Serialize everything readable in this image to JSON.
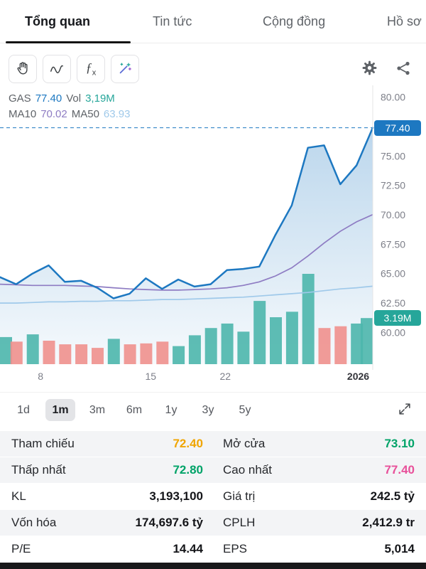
{
  "tabs": {
    "items": [
      {
        "label": "Tổng quan"
      },
      {
        "label": "Tin tức"
      },
      {
        "label": "Cộng đồng"
      },
      {
        "label": "Hồ sơ"
      }
    ],
    "active": "Tổng quan"
  },
  "toolbar": {
    "icons": [
      "pan-hand",
      "indicator-curve",
      "function-fx",
      "magic-wand"
    ],
    "right_icons": [
      "settings-gear",
      "share"
    ]
  },
  "legend": {
    "symbol": "GAS",
    "price": "77.40",
    "vol_label": "Vol",
    "vol_value": "3,19M",
    "ma10_label": "MA10",
    "ma10_value": "70.02",
    "ma50_label": "MA50",
    "ma50_value": "63.93"
  },
  "badges": {
    "price": "77.40",
    "volume": "3.19M"
  },
  "chart_data": {
    "type": "line",
    "symbol": "GAS",
    "timeframe": "1m",
    "ylim": [
      59.0,
      81.0
    ],
    "current_price": 77.4,
    "current_volume_label": "3.19M",
    "price": [
      64.7,
      64.1,
      65.0,
      65.7,
      64.3,
      64.4,
      63.8,
      62.9,
      63.3,
      64.6,
      63.7,
      64.5,
      63.9,
      64.1,
      65.3,
      65.4,
      65.6,
      68.3,
      70.8,
      75.7,
      75.9,
      72.6,
      74.2,
      77.4
    ],
    "ma10": [
      64.1,
      64.05,
      64.0,
      64.0,
      64.0,
      63.95,
      63.9,
      63.8,
      63.7,
      63.65,
      63.6,
      63.6,
      63.65,
      63.7,
      63.8,
      64.0,
      64.3,
      64.8,
      65.5,
      66.5,
      67.6,
      68.6,
      69.4,
      70.02
    ],
    "ma50": [
      62.5,
      62.5,
      62.55,
      62.6,
      62.6,
      62.65,
      62.65,
      62.7,
      62.7,
      62.75,
      62.8,
      62.8,
      62.85,
      62.9,
      62.95,
      63.0,
      63.1,
      63.2,
      63.3,
      63.4,
      63.55,
      63.7,
      63.8,
      63.93
    ],
    "volume": [
      {
        "h": 0.3,
        "c": "up"
      },
      {
        "h": 0.25,
        "c": "down"
      },
      {
        "h": 0.33,
        "c": "up"
      },
      {
        "h": 0.26,
        "c": "down"
      },
      {
        "h": 0.22,
        "c": "down"
      },
      {
        "h": 0.22,
        "c": "down"
      },
      {
        "h": 0.18,
        "c": "down"
      },
      {
        "h": 0.28,
        "c": "up"
      },
      {
        "h": 0.22,
        "c": "down"
      },
      {
        "h": 0.23,
        "c": "down"
      },
      {
        "h": 0.25,
        "c": "down"
      },
      {
        "h": 0.2,
        "c": "up"
      },
      {
        "h": 0.32,
        "c": "up"
      },
      {
        "h": 0.4,
        "c": "up"
      },
      {
        "h": 0.45,
        "c": "up"
      },
      {
        "h": 0.36,
        "c": "up"
      },
      {
        "h": 0.7,
        "c": "up"
      },
      {
        "h": 0.52,
        "c": "up"
      },
      {
        "h": 0.58,
        "c": "up"
      },
      {
        "h": 1.0,
        "c": "up"
      },
      {
        "h": 0.4,
        "c": "down"
      },
      {
        "h": 0.42,
        "c": "down"
      },
      {
        "h": 0.45,
        "c": "up"
      },
      {
        "h": 0.51,
        "c": "up"
      }
    ],
    "y_ticks": [
      {
        "label": "80.00",
        "value": 80.0
      },
      {
        "label": "75.00",
        "value": 75.0
      },
      {
        "label": "72.50",
        "value": 72.5
      },
      {
        "label": "70.00",
        "value": 70.0
      },
      {
        "label": "67.50",
        "value": 67.5
      },
      {
        "label": "65.00",
        "value": 65.0
      },
      {
        "label": "62.50",
        "value": 62.5
      },
      {
        "label": "60.00",
        "value": 60.0
      }
    ],
    "x_ticks": [
      {
        "label": "8",
        "index": 2.5
      },
      {
        "label": "15",
        "index": 9.3
      },
      {
        "label": "22",
        "index": 13.9
      },
      {
        "label": "2026",
        "index": 22.1,
        "bold": true
      }
    ],
    "colors": {
      "line": "#1d78c1",
      "ma10": "#8e7cc3",
      "ma50": "#9fc9ea",
      "vol_up": "#4db6ac",
      "vol_down": "#f0908d",
      "badge_price": "#1d78c1",
      "badge_volume": "#26a69a"
    }
  },
  "range": {
    "options": [
      "1d",
      "1m",
      "3m",
      "6m",
      "1y",
      "3y",
      "5y"
    ],
    "active": "1m"
  },
  "stats": {
    "rows": [
      {
        "label1": "Tham chiếu",
        "value1": "72.40",
        "color1": "#f0a500",
        "label2": "Mở cửa",
        "value2": "73.10",
        "color2": "#00a368"
      },
      {
        "label1": "Thấp nhất",
        "value1": "72.80",
        "color1": "#00a368",
        "label2": "Cao nhất",
        "value2": "77.40",
        "color2": "#e8509a"
      },
      {
        "label1": "KL",
        "value1": "3,193,100",
        "label2": "Giá trị",
        "value2": "242.5 tỷ"
      },
      {
        "label1": "Vốn hóa",
        "value1": "174,697.6 tỷ",
        "label2": "CPLH",
        "value2": "2,412.9 tr"
      },
      {
        "label1": "P/E",
        "value1": "14.44",
        "label2": "EPS",
        "value2": "5,014"
      }
    ]
  }
}
